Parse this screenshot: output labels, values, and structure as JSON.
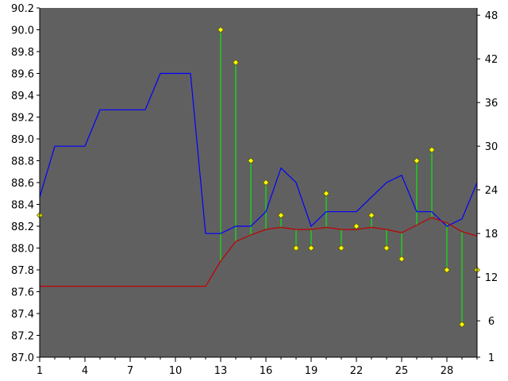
{
  "chart_data": {
    "type": "line",
    "grid": false,
    "legend": "none",
    "x": [
      1,
      2,
      3,
      4,
      5,
      6,
      7,
      8,
      9,
      10,
      11,
      12,
      13,
      14,
      15,
      16,
      17,
      18,
      19,
      20,
      21,
      22,
      23,
      24,
      25,
      26,
      27,
      28,
      29,
      30
    ],
    "xlim": [
      1,
      30
    ],
    "x_ticks": [
      1,
      4,
      7,
      10,
      13,
      16,
      19,
      22,
      25,
      28
    ],
    "y_left": {
      "min": 87.0,
      "max": 90.2,
      "ticks": [
        87.0,
        87.2,
        87.4,
        87.6,
        87.8,
        88.0,
        88.2,
        88.4,
        88.6,
        88.8,
        89.0,
        89.2,
        89.4,
        89.6,
        89.8,
        90.0,
        90.2
      ]
    },
    "y_right": {
      "min": 1,
      "max": 49,
      "ticks": [
        1,
        6,
        12,
        18,
        24,
        30,
        36,
        42,
        48
      ]
    },
    "series": [
      {
        "axis": "left",
        "style": "markers_with_stems",
        "values": [
          88.3,
          null,
          null,
          null,
          null,
          null,
          null,
          null,
          null,
          null,
          null,
          null,
          90.0,
          89.7,
          88.8,
          88.6,
          88.3,
          88.0,
          88.0,
          88.5,
          88.0,
          88.2,
          88.3,
          88.0,
          87.9,
          88.8,
          88.9,
          87.8,
          87.3,
          87.8
        ]
      },
      {
        "axis": "left",
        "style": "line",
        "values": [
          87.65,
          87.65,
          87.65,
          87.65,
          87.65,
          87.65,
          87.65,
          87.65,
          87.65,
          87.65,
          87.65,
          87.65,
          87.88,
          88.06,
          88.12,
          88.17,
          88.19,
          88.17,
          88.17,
          88.19,
          88.17,
          88.17,
          88.19,
          88.17,
          88.14,
          88.21,
          88.28,
          88.23,
          88.15,
          88.11
        ]
      },
      {
        "axis": "right",
        "style": "line",
        "values": [
          23,
          30,
          30,
          30,
          35,
          35,
          35,
          35,
          40,
          40,
          40,
          18,
          18,
          19,
          19,
          21,
          27,
          25,
          19,
          21,
          21,
          21,
          23,
          25,
          26,
          21,
          21,
          19,
          20,
          25
        ]
      }
    ]
  },
  "colors": {
    "plot_background": "#606060",
    "stem": "#00ff00",
    "marker_fill": "#ffff00",
    "marker_stroke": "#606000",
    "ma_line": "#c00000",
    "blue_line": "#0000ff",
    "axis": "#000000"
  }
}
